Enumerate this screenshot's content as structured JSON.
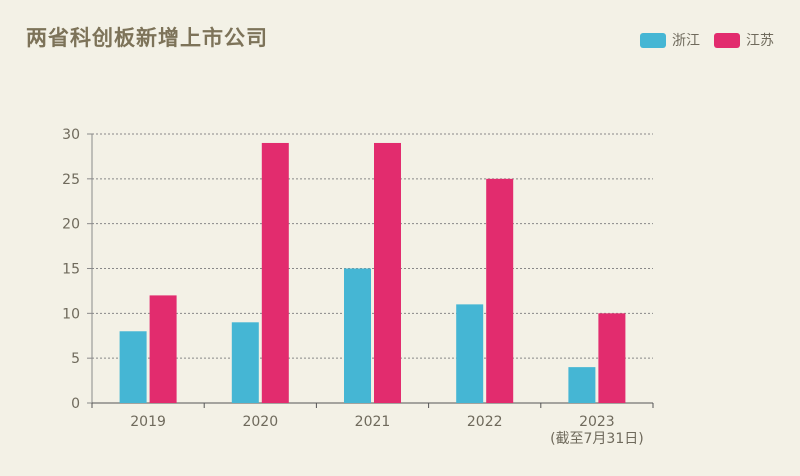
{
  "title": "两省科创板新增上市公司",
  "colors": {
    "zhejiang": "#45b6d4",
    "jiangsu": "#e22c6e",
    "grid": "#888888",
    "axis": "#8a8a8a",
    "text": "#6f6a5c"
  },
  "chart_data": {
    "type": "bar",
    "title": "两省科创板新增上市公司",
    "categories": [
      "2019",
      "2020",
      "2021",
      "2022",
      "2023"
    ],
    "category_note": {
      "index": 4,
      "text": "(截至7月31日)"
    },
    "series": [
      {
        "name": "浙江",
        "color": "#45b6d4",
        "values": [
          8,
          9,
          15,
          11,
          4
        ]
      },
      {
        "name": "江苏",
        "color": "#e22c6e",
        "values": [
          12,
          29,
          29,
          25,
          10
        ]
      }
    ],
    "yticks": [
      "0",
      "5",
      "10",
      "15",
      "20",
      "25",
      "30"
    ],
    "ylim": [
      0,
      30
    ],
    "grid": true,
    "legend_position": "top-right",
    "xlabel": "",
    "ylabel": ""
  }
}
